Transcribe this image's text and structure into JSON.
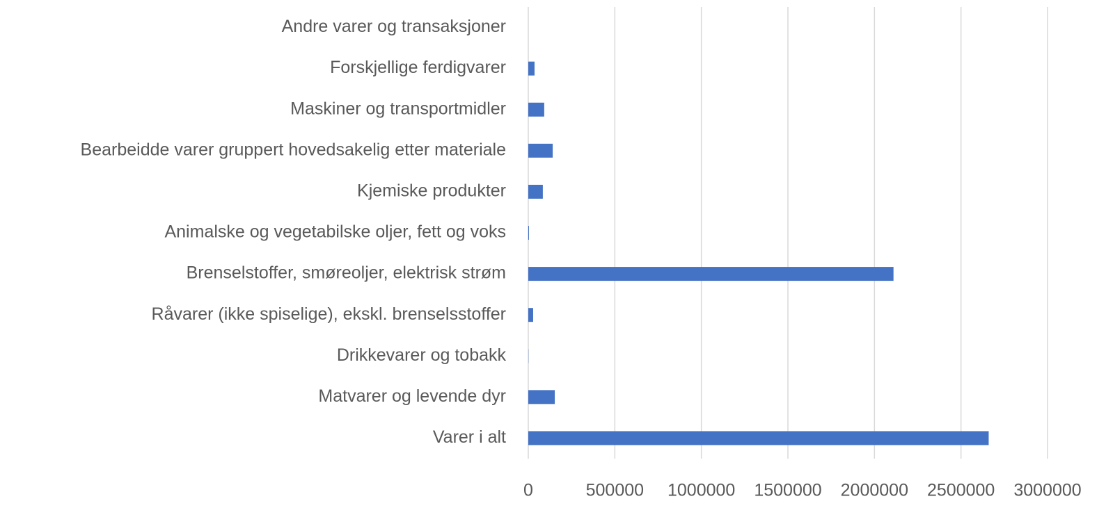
{
  "chart_data": {
    "type": "hbar",
    "categories": [
      "Varer i alt",
      "Matvarer og levende dyr",
      "Drikkevarer og tobakk",
      "Råvarer (ikke spiselige), ekskl. brenselsstoffer",
      "Brenselstoffer, smøreoljer, elektrisk strøm",
      "Animalske og vegetabilske oljer, fett og voks",
      "Kjemiske produkter",
      "Bearbeidde varer gruppert hovedsakelig etter materiale",
      "Maskiner og transportmidler",
      "Forskjellige ferdigvarer",
      "Andre varer og transaksjoner"
    ],
    "values": [
      2660000,
      153000,
      1000,
      28000,
      2110000,
      4000,
      84000,
      141000,
      92000,
      36000,
      0
    ],
    "color": "#4472c4",
    "xlim": [
      0,
      3000000
    ],
    "xticks": [
      0,
      500000,
      1000000,
      1500000,
      2000000,
      2500000,
      3000000
    ],
    "grid": true
  }
}
